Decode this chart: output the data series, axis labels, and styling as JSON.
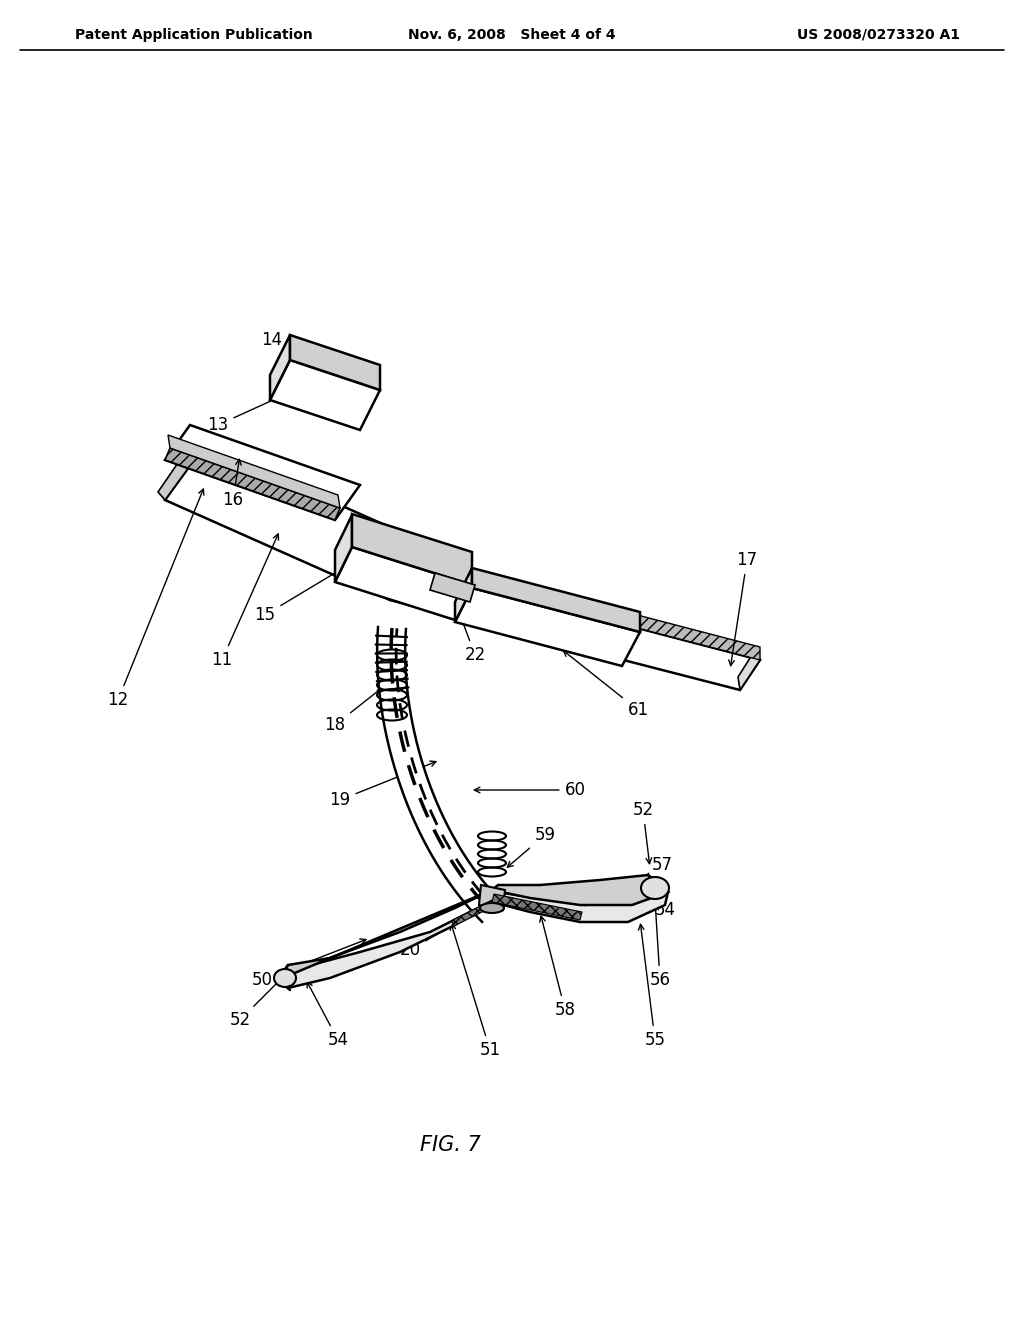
{
  "title_left": "Patent Application Publication",
  "title_center": "Nov. 6, 2008   Sheet 4 of 4",
  "title_right": "US 2008/0273320 A1",
  "fig_label": "FIG. 7",
  "background_color": "#ffffff",
  "header_fontsize": 10,
  "label_fontsize": 12
}
